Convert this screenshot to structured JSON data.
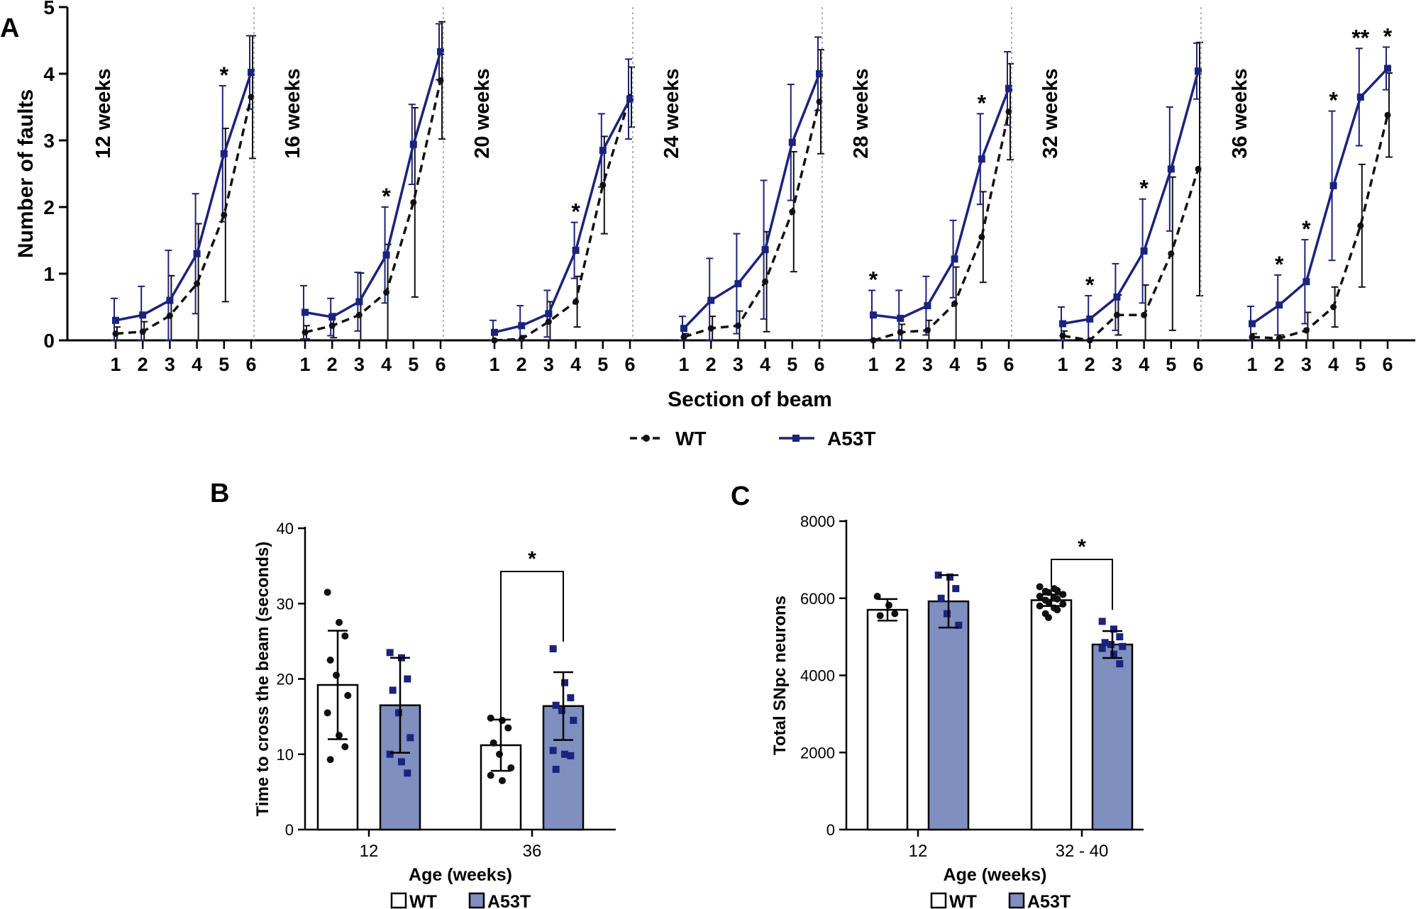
{
  "chart_data": [
    {
      "panel": "A",
      "type": "line",
      "ylabel": "Number of faults",
      "xlabel": "Section of beam",
      "ylim": [
        0,
        5
      ],
      "yticks": [
        "0",
        "1",
        "2",
        "3",
        "4",
        "5"
      ],
      "sections": [
        "1",
        "2",
        "3",
        "4",
        "5",
        "6"
      ],
      "legend": [
        {
          "name": "WT",
          "color": "#111111",
          "style": "dashed-circle"
        },
        {
          "name": "A53T",
          "color": "#1a237e",
          "style": "solid-square"
        }
      ],
      "subplots": [
        {
          "label": "12 weeks",
          "wt": [
            0.1,
            0.13,
            0.37,
            0.85,
            1.88,
            3.65
          ],
          "wt_err": [
            0.1,
            0.15,
            0.6,
            0.9,
            1.3,
            0.92
          ],
          "a53t": [
            0.3,
            0.38,
            0.6,
            1.3,
            2.8,
            4.02
          ],
          "a53t_err": [
            0.33,
            0.43,
            0.75,
            0.9,
            1.02,
            0.55
          ],
          "stars": [
            "",
            "",
            "",
            "",
            "*",
            ""
          ]
        },
        {
          "label": "16 weeks",
          "wt": [
            0.12,
            0.22,
            0.38,
            0.72,
            2.07,
            3.9
          ],
          "wt_err": [
            0.1,
            0.18,
            0.63,
            0.72,
            1.42,
            0.88
          ],
          "a53t": [
            0.42,
            0.35,
            0.58,
            1.28,
            2.94,
            4.33
          ],
          "a53t_err": [
            0.4,
            0.28,
            0.44,
            0.72,
            0.6,
            0.42
          ],
          "stars": [
            "",
            "",
            "",
            "*",
            "",
            ""
          ]
        },
        {
          "label": "20 weeks",
          "wt": [
            0.0,
            0.02,
            0.28,
            0.58,
            2.33,
            3.65
          ],
          "wt_err": [
            0.0,
            0.05,
            0.3,
            0.38,
            0.73,
            0.45
          ],
          "a53t": [
            0.12,
            0.22,
            0.4,
            1.35,
            2.85,
            3.62
          ],
          "a53t_err": [
            0.18,
            0.3,
            0.35,
            0.42,
            0.55,
            0.6
          ],
          "stars": [
            "",
            "",
            "",
            "*",
            "",
            ""
          ]
        },
        {
          "label": "24 weeks",
          "wt": [
            0.05,
            0.18,
            0.22,
            0.88,
            1.93,
            3.58
          ],
          "wt_err": [
            0.05,
            0.18,
            0.22,
            0.75,
            0.9,
            0.78
          ],
          "a53t": [
            0.18,
            0.6,
            0.85,
            1.36,
            2.97,
            4.0
          ],
          "a53t_err": [
            0.18,
            0.63,
            0.75,
            1.04,
            0.87,
            0.55
          ],
          "stars": [
            "",
            "",
            "",
            "",
            "",
            ""
          ]
        },
        {
          "label": "28 weeks",
          "wt": [
            0.0,
            0.12,
            0.15,
            0.55,
            1.55,
            3.43
          ],
          "wt_err": [
            0.0,
            0.12,
            0.15,
            0.55,
            0.68,
            0.72
          ],
          "a53t": [
            0.38,
            0.33,
            0.52,
            1.22,
            2.72,
            3.78
          ],
          "a53t_err": [
            0.37,
            0.42,
            0.44,
            0.58,
            0.68,
            0.55
          ],
          "stars": [
            "*",
            "",
            "",
            "",
            "*",
            ""
          ]
        },
        {
          "label": "32 weeks",
          "wt": [
            0.07,
            0.0,
            0.38,
            0.38,
            1.3,
            2.57
          ],
          "wt_err": [
            0.07,
            0.0,
            0.3,
            0.45,
            1.15,
            1.9
          ],
          "a53t": [
            0.25,
            0.32,
            0.65,
            1.34,
            2.57,
            4.04
          ],
          "a53t_err": [
            0.25,
            0.35,
            0.5,
            0.78,
            0.93,
            0.42
          ],
          "stars": [
            "",
            "*",
            "",
            "*",
            "",
            ""
          ]
        },
        {
          "label": "36 weeks",
          "wt": [
            0.05,
            0.03,
            0.15,
            0.5,
            1.72,
            3.38
          ],
          "wt_err": [
            0.05,
            0.05,
            0.27,
            0.3,
            0.92,
            0.63
          ],
          "a53t": [
            0.25,
            0.53,
            0.88,
            2.32,
            3.65,
            4.08
          ],
          "a53t_err": [
            0.26,
            0.45,
            0.63,
            1.12,
            0.73,
            0.32
          ],
          "stars": [
            "",
            "*",
            "*",
            "*",
            "**",
            "*"
          ]
        }
      ]
    },
    {
      "panel": "B",
      "type": "bar",
      "ylabel": "Time to cross the beam (seconds)",
      "xlabel": "Age (weeks)",
      "ylim": [
        0,
        40
      ],
      "yticks": [
        "0",
        "10",
        "20",
        "30",
        "40"
      ],
      "categories": [
        "12",
        "36"
      ],
      "series": [
        {
          "name": "WT",
          "fill": "#ffffff",
          "values": [
            19.2,
            11.2
          ],
          "errors": [
            7.2,
            3.4
          ],
          "points": [
            [
              31.5,
              27.5,
              25.7,
              22.5,
              20.5,
              17.8,
              15.5,
              12.5,
              11.0,
              9.3
            ],
            [
              14.8,
              14.5,
              13.5,
              11.5,
              10.0,
              8.2,
              7.2,
              6.5
            ]
          ]
        },
        {
          "name": "A53T",
          "fill": "#7f8fbf",
          "values": [
            16.5,
            16.4
          ],
          "errors": [
            6.3,
            4.5
          ],
          "points": [
            [
              23.5,
              22.8,
              20.0,
              18.5,
              15.5,
              12.2,
              10.0,
              9.0,
              7.5
            ],
            [
              24.0,
              19.5,
              17.5,
              16.5,
              15.8,
              14.5,
              10.5,
              10.0,
              9.8,
              8.0
            ]
          ]
        }
      ],
      "significance": {
        "label": "*",
        "category": "36"
      },
      "legend": [
        "WT",
        "A53T"
      ]
    },
    {
      "panel": "C",
      "type": "bar",
      "ylabel": "Total SNpc neurons",
      "xlabel": "Age (weeks)",
      "ylim": [
        0,
        8000
      ],
      "yticks": [
        "0",
        "2000",
        "4000",
        "6000",
        "8000"
      ],
      "categories": [
        "12",
        "32 - 40"
      ],
      "series": [
        {
          "name": "WT",
          "fill": "#ffffff",
          "values": [
            5700,
            5950
          ],
          "errors": [
            280,
            150
          ],
          "points": [
            [
              6050,
              5820,
              5600,
              5550
            ],
            [
              6300,
              6250,
              6200,
              6180,
              6150,
              6100,
              6050,
              6000,
              5980,
              5950,
              5900,
              5850,
              5800,
              5750,
              5700,
              5600,
              5500
            ]
          ]
        },
        {
          "name": "A53T",
          "fill": "#7f8fbf",
          "values": [
            5920,
            4800
          ],
          "errors": [
            680,
            350
          ],
          "points": [
            [
              6600,
              6550,
              6250,
              6000,
              5600,
              5300
            ],
            [
              5400,
              5200,
              5000,
              4850,
              4800,
              4750,
              4700,
              4550,
              4300
            ]
          ]
        }
      ],
      "significance": {
        "label": "*",
        "category": "32 - 40"
      },
      "legend": [
        "WT",
        "A53T"
      ]
    }
  ]
}
